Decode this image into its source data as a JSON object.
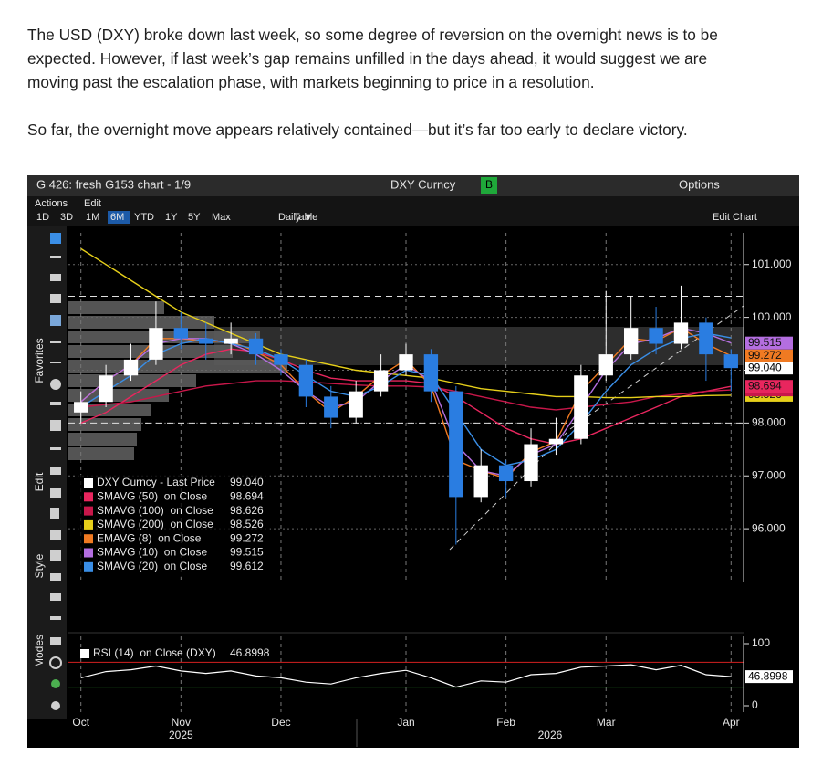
{
  "paragraphs": [
    "The USD (DXY) broke down last week, so some degree of reversion on the overnight news is to be expected. However, if last week’s gap remains unfilled in the days ahead, it would suggest we are moving past the escalation phase, with markets beginning to price in a resolution.",
    "So far, the overnight move appears relatively contained—but it’s far too early to declare victory."
  ],
  "terminal": {
    "window_title": "G 426: fresh G153 chart - 1/9",
    "ticker": "DXY Curncy",
    "badge": "B",
    "options": "Options",
    "menus": [
      "Actions",
      "Edit"
    ],
    "ranges": [
      "1D",
      "3D",
      "1M",
      "6M",
      "YTD",
      "1Y",
      "5Y",
      "Max"
    ],
    "active_range": 3,
    "frequency": "Daily ▼",
    "table": "Table",
    "edit_chart": "Edit Chart",
    "side_labels": [
      "Favorites",
      "Edit",
      "Style",
      "Modes"
    ]
  },
  "chart_data": {
    "type": "candlestick",
    "categories": [
      "Oct",
      null,
      null,
      null,
      "Nov",
      null,
      null,
      null,
      "Dec",
      null,
      null,
      null,
      null,
      "Jan",
      null,
      null,
      null,
      "Feb",
      null,
      null,
      null,
      "Mar",
      null,
      null,
      null,
      null,
      "Apr"
    ],
    "year_labels": [
      "2025",
      "2026"
    ],
    "ylim": [
      95.0,
      101.6
    ],
    "yticks": [
      {
        "value": 96,
        "label": "96.000"
      },
      {
        "value": 97,
        "label": "97.000"
      },
      {
        "value": 98,
        "label": "98.000"
      },
      {
        "value": 99,
        "label": "99.000"
      },
      {
        "value": 100,
        "label": "100.000"
      },
      {
        "value": 101,
        "label": "101.000"
      }
    ],
    "grid": true,
    "hlines": [
      100.4,
      98.0
    ],
    "candles": {
      "name": "DXY Curncy - Last Price",
      "color_up": "#ffffff",
      "color_down": "#2a7de1",
      "open": [
        98.2,
        98.4,
        98.9,
        99.2,
        99.8,
        99.6,
        99.5,
        99.6,
        99.3,
        99.1,
        98.5,
        98.1,
        98.6,
        99.0,
        99.3,
        98.6,
        96.6,
        97.2,
        96.9,
        97.6,
        97.7,
        98.9,
        99.3,
        99.8,
        99.5,
        99.9,
        99.3
      ],
      "high": [
        98.6,
        99.1,
        99.5,
        100.3,
        100.1,
        99.9,
        99.9,
        99.7,
        99.4,
        99.2,
        98.7,
        98.8,
        99.3,
        99.5,
        99.4,
        98.7,
        97.5,
        97.3,
        97.9,
        98.1,
        99.1,
        100.5,
        100.4,
        100.2,
        100.6,
        100.0,
        99.4
      ],
      "low": [
        98.0,
        98.3,
        98.8,
        99.1,
        99.4,
        99.2,
        99.3,
        99.1,
        98.9,
        98.3,
        97.9,
        98.0,
        98.5,
        98.9,
        98.4,
        95.7,
        96.5,
        96.6,
        96.8,
        97.4,
        97.6,
        98.8,
        99.2,
        99.3,
        99.4,
        98.8,
        98.6
      ],
      "close": [
        98.4,
        98.9,
        99.2,
        99.8,
        99.6,
        99.5,
        99.6,
        99.3,
        99.1,
        98.5,
        98.1,
        98.6,
        99.0,
        99.3,
        98.6,
        96.6,
        97.2,
        96.9,
        97.6,
        97.7,
        98.9,
        99.3,
        99.8,
        99.5,
        99.9,
        99.3,
        99.04
      ],
      "last_label": "99.040"
    },
    "series": [
      {
        "name": "SMAVG (50)  on Close",
        "color": "#e8265e",
        "values": [
          98.0,
          98.2,
          98.5,
          98.8,
          99.1,
          99.3,
          99.4,
          99.35,
          99.2,
          99.0,
          98.85,
          98.8,
          98.8,
          98.8,
          98.75,
          98.5,
          98.2,
          97.9,
          97.7,
          97.6,
          97.7,
          97.9,
          98.1,
          98.3,
          98.5,
          98.6,
          98.694
        ]
      },
      {
        "name": "SMAVG (100)  on Close",
        "color": "#c8174a",
        "values": [
          98.3,
          98.35,
          98.4,
          98.5,
          98.6,
          98.7,
          98.75,
          98.8,
          98.8,
          98.78,
          98.75,
          98.72,
          98.7,
          98.7,
          98.68,
          98.6,
          98.5,
          98.4,
          98.3,
          98.25,
          98.3,
          98.35,
          98.4,
          98.5,
          98.55,
          98.6,
          98.626
        ]
      },
      {
        "name": "SMAVG (200)  on Close",
        "color": "#e6cf1a",
        "values": [
          101.3,
          101.0,
          100.7,
          100.4,
          100.1,
          99.9,
          99.7,
          99.5,
          99.3,
          99.2,
          99.1,
          99.0,
          98.95,
          98.9,
          98.85,
          98.75,
          98.65,
          98.6,
          98.55,
          98.5,
          98.5,
          98.48,
          98.48,
          98.5,
          98.5,
          98.52,
          98.526
        ]
      },
      {
        "name": "EMAVG (8)  on Close",
        "color": "#f07a22",
        "values": [
          98.4,
          98.8,
          99.1,
          99.6,
          99.6,
          99.55,
          99.55,
          99.35,
          99.1,
          98.6,
          98.2,
          98.5,
          98.9,
          99.2,
          98.7,
          97.3,
          97.1,
          96.95,
          97.45,
          97.65,
          98.6,
          99.1,
          99.6,
          99.55,
          99.8,
          99.5,
          99.272
        ]
      },
      {
        "name": "SMAVG (10)  on Close",
        "color": "#b46ee0",
        "values": [
          98.4,
          98.8,
          99.1,
          99.5,
          99.6,
          99.6,
          99.5,
          99.3,
          99.0,
          98.6,
          98.3,
          98.4,
          98.8,
          99.1,
          98.8,
          97.6,
          97.1,
          97.0,
          97.4,
          97.6,
          98.3,
          99.0,
          99.5,
          99.6,
          99.8,
          99.7,
          99.515
        ]
      },
      {
        "name": "SMAVG (20)  on Close",
        "color": "#3a8ee6",
        "values": [
          98.3,
          98.6,
          98.9,
          99.3,
          99.5,
          99.6,
          99.5,
          99.4,
          99.2,
          98.9,
          98.6,
          98.5,
          98.7,
          99.0,
          98.9,
          98.2,
          97.5,
          97.2,
          97.3,
          97.5,
          98.0,
          98.6,
          99.1,
          99.4,
          99.6,
          99.7,
          99.612
        ]
      }
    ],
    "rsi": {
      "type": "line",
      "name": "RSI (14)  on Close (DXY)",
      "color": "#ffffff",
      "values": [
        45,
        55,
        58,
        64,
        56,
        52,
        56,
        48,
        45,
        38,
        35,
        45,
        52,
        57,
        45,
        30,
        40,
        38,
        50,
        52,
        62,
        64,
        66,
        58,
        65,
        50,
        46.8998
      ],
      "ylim": [
        0,
        100
      ],
      "yticks": [
        0,
        100
      ],
      "levels": [
        70,
        30
      ],
      "level_colors": [
        "#d42020",
        "#2fb52f"
      ]
    }
  }
}
